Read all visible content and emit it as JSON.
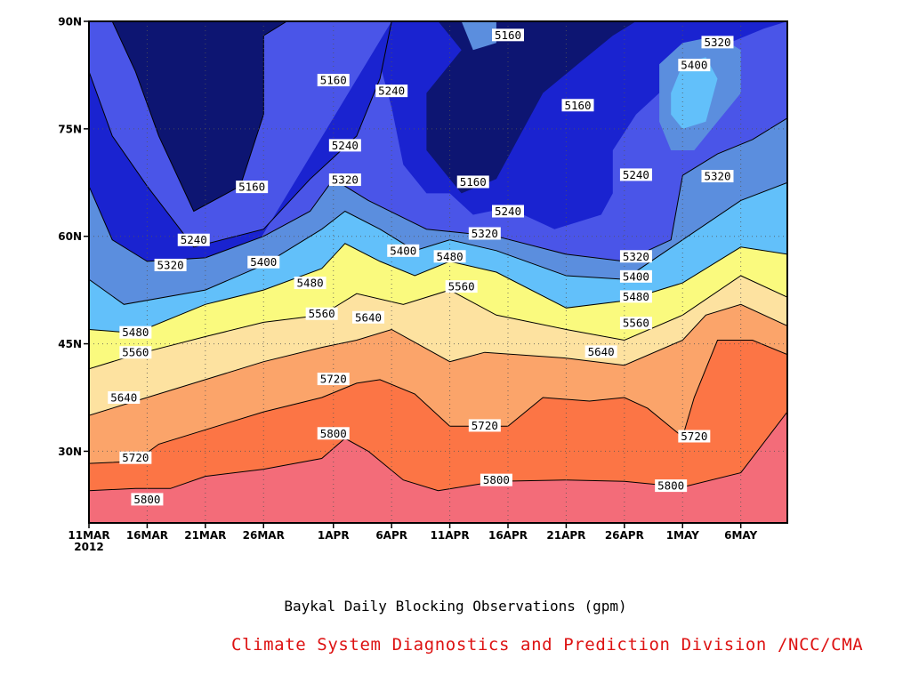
{
  "chart_data": {
    "type": "contour",
    "title": "Baykal Daily Blocking Observations (gpm)",
    "credit": "Climate System Diagnostics and Prediction Division /NCC/CMA",
    "x_tick_labels": [
      "11MAR",
      "16MAR",
      "21MAR",
      "26MAR",
      "1APR",
      "6APR",
      "11APR",
      "16APR",
      "21APR",
      "26APR",
      "1MAY",
      "6MAY"
    ],
    "x_year_label": "2012",
    "x_range": [
      "2012-03-11",
      "2012-05-10"
    ],
    "y_tick_labels": [
      "30N",
      "45N",
      "60N",
      "75N",
      "90N"
    ],
    "y_range_deg": [
      20,
      90
    ],
    "grid": true,
    "contour_levels": [
      5160,
      5240,
      5320,
      5400,
      5480,
      5560,
      5640,
      5720,
      5800
    ],
    "band_colors": [
      "#0d1572",
      "#1a23d0",
      "#4a55e8",
      "#5b8ede",
      "#62c0fa",
      "#fafa7e",
      "#fde2a0",
      "#fba46a",
      "#fc7545",
      "#f36c79"
    ],
    "contour_lines": [
      {
        "level": 5800,
        "points": [
          [
            "2012-03-11",
            24.5
          ],
          [
            "2012-03-15",
            24.8
          ],
          [
            "2012-03-18",
            24.8
          ],
          [
            "2012-03-21",
            26.5
          ],
          [
            "2012-03-26",
            27.5
          ],
          [
            "2012-03-31",
            29.0
          ],
          [
            "2012-04-02",
            31.8
          ],
          [
            "2012-04-04",
            30.0
          ],
          [
            "2012-04-07",
            26.0
          ],
          [
            "2012-04-10",
            24.5
          ],
          [
            "2012-04-15",
            25.8
          ],
          [
            "2012-04-21",
            26.0
          ],
          [
            "2012-04-26",
            25.8
          ],
          [
            "2012-05-01",
            25.0
          ],
          [
            "2012-05-06",
            27.0
          ],
          [
            "2012-05-10",
            35.5
          ]
        ]
      },
      {
        "level": 5720,
        "points": [
          [
            "2012-03-11",
            28.3
          ],
          [
            "2012-03-15",
            28.6
          ],
          [
            "2012-03-17",
            31.0
          ],
          [
            "2012-03-21",
            33.0
          ],
          [
            "2012-03-26",
            35.5
          ],
          [
            "2012-03-31",
            37.5
          ],
          [
            "2012-04-03",
            39.5
          ],
          [
            "2012-04-05",
            40.0
          ],
          [
            "2012-04-08",
            38.0
          ],
          [
            "2012-04-11",
            33.5
          ],
          [
            "2012-04-16",
            33.5
          ],
          [
            "2012-04-19",
            37.5
          ],
          [
            "2012-04-23",
            37.0
          ],
          [
            "2012-04-26",
            37.5
          ],
          [
            "2012-04-28",
            36.0
          ],
          [
            "2012-05-01",
            32.0
          ],
          [
            "2012-05-02",
            37.5
          ],
          [
            "2012-05-04",
            45.5
          ],
          [
            "2012-05-07",
            45.5
          ],
          [
            "2012-05-10",
            43.5
          ]
        ]
      },
      {
        "level": 5640,
        "points": [
          [
            "2012-03-11",
            35.0
          ],
          [
            "2012-03-15",
            37.0
          ],
          [
            "2012-03-21",
            40.0
          ],
          [
            "2012-03-26",
            42.5
          ],
          [
            "2012-03-31",
            44.5
          ],
          [
            "2012-04-03",
            45.5
          ],
          [
            "2012-04-06",
            47.0
          ],
          [
            "2012-04-11",
            42.5
          ],
          [
            "2012-04-14",
            43.8
          ],
          [
            "2012-04-21",
            43.0
          ],
          [
            "2012-04-26",
            42.0
          ],
          [
            "2012-05-01",
            45.5
          ],
          [
            "2012-05-03",
            49.0
          ],
          [
            "2012-05-06",
            50.5
          ],
          [
            "2012-05-10",
            47.5
          ]
        ]
      },
      {
        "level": 5560,
        "points": [
          [
            "2012-03-11",
            41.5
          ],
          [
            "2012-03-15",
            43.5
          ],
          [
            "2012-03-21",
            46.0
          ],
          [
            "2012-03-26",
            48.0
          ],
          [
            "2012-03-31",
            49.0
          ],
          [
            "2012-04-03",
            52.0
          ],
          [
            "2012-04-07",
            50.5
          ],
          [
            "2012-04-11",
            52.5
          ],
          [
            "2012-04-15",
            49.0
          ],
          [
            "2012-04-21",
            47.0
          ],
          [
            "2012-04-26",
            45.5
          ],
          [
            "2012-05-01",
            49.0
          ],
          [
            "2012-05-06",
            54.5
          ],
          [
            "2012-05-10",
            51.5
          ]
        ]
      },
      {
        "level": 5480,
        "points": [
          [
            "2012-03-11",
            47.0
          ],
          [
            "2012-03-15",
            46.5
          ],
          [
            "2012-03-21",
            50.5
          ],
          [
            "2012-03-26",
            52.5
          ],
          [
            "2012-03-31",
            55.5
          ],
          [
            "2012-04-02",
            59.0
          ],
          [
            "2012-04-05",
            56.5
          ],
          [
            "2012-04-08",
            54.5
          ],
          [
            "2012-04-11",
            56.5
          ],
          [
            "2012-04-15",
            55.0
          ],
          [
            "2012-04-21",
            50.0
          ],
          [
            "2012-04-26",
            51.0
          ],
          [
            "2012-05-01",
            53.5
          ],
          [
            "2012-05-06",
            58.5
          ],
          [
            "2012-05-10",
            57.5
          ]
        ]
      },
      {
        "level": 5400,
        "points": [
          [
            "2012-03-11",
            54.0
          ],
          [
            "2012-03-14",
            50.5
          ],
          [
            "2012-03-21",
            52.5
          ],
          [
            "2012-03-26",
            56.0
          ],
          [
            "2012-03-31",
            61.0
          ],
          [
            "2012-04-02",
            63.5
          ],
          [
            "2012-04-05",
            61.0
          ],
          [
            "2012-04-08",
            58.0
          ],
          [
            "2012-04-11",
            59.5
          ],
          [
            "2012-04-15",
            58.0
          ],
          [
            "2012-04-21",
            54.5
          ],
          [
            "2012-04-26",
            54.0
          ],
          [
            "2012-05-01",
            59.5
          ],
          [
            "2012-05-06",
            65.0
          ],
          [
            "2012-05-10",
            67.5
          ]
        ]
      },
      {
        "level": 5320,
        "points": [
          [
            "2012-03-11",
            67.0
          ],
          [
            "2012-03-13",
            59.5
          ],
          [
            "2012-03-16",
            56.5
          ],
          [
            "2012-03-21",
            57.0
          ],
          [
            "2012-03-26",
            60.0
          ],
          [
            "2012-03-30",
            63.5
          ],
          [
            "2012-04-01",
            68.0
          ],
          [
            "2012-04-04",
            65.0
          ],
          [
            "2012-04-09",
            61.0
          ],
          [
            "2012-04-15",
            60.0
          ],
          [
            "2012-04-21",
            57.5
          ],
          [
            "2012-04-26",
            56.5
          ],
          [
            "2012-04-30",
            59.5
          ],
          [
            "2012-05-01",
            68.5
          ],
          [
            "2012-05-04",
            71.5
          ],
          [
            "2012-05-07",
            73.5
          ],
          [
            "2012-05-10",
            76.5
          ]
        ]
      },
      {
        "level": 5240,
        "points": [
          [
            "2012-03-11",
            83.0
          ],
          [
            "2012-03-13",
            74.0
          ],
          [
            "2012-03-16",
            67.0
          ],
          [
            "2012-03-20",
            58.5
          ],
          [
            "2012-03-26",
            61.0
          ],
          [
            "2012-03-30",
            68.0
          ],
          [
            "2012-04-01",
            71.0
          ],
          [
            "2012-04-03",
            74.0
          ],
          [
            "2012-04-05",
            82.0
          ],
          [
            "2012-04-06",
            90.0
          ]
        ]
      },
      {
        "level": 5160,
        "points": [
          [
            "2012-03-13",
            90.0
          ],
          [
            "2012-03-15",
            83.0
          ],
          [
            "2012-03-17",
            74.0
          ],
          [
            "2012-03-20",
            63.5
          ],
          [
            "2012-03-24",
            67.0
          ],
          [
            "2012-03-26",
            77.0
          ],
          [
            "2012-03-26",
            88.0
          ],
          [
            "2012-03-28",
            90.0
          ]
        ]
      }
    ],
    "contour_labels": [
      {
        "text": "5160",
        "x": "2012-04-01",
        "y": 81.8
      },
      {
        "text": "5240",
        "x": "2012-04-06",
        "y": 80.3
      },
      {
        "text": "5160",
        "x": "2012-04-16",
        "y": 88.1
      },
      {
        "text": "5320",
        "x": "2012-05-04",
        "y": 87.1
      },
      {
        "text": "5400",
        "x": "2012-05-02",
        "y": 83.9
      },
      {
        "text": "5160",
        "x": "2012-04-22",
        "y": 78.3
      },
      {
        "text": "5240",
        "x": "2012-04-02",
        "y": 72.7
      },
      {
        "text": "5320",
        "x": "2012-04-02",
        "y": 67.9
      },
      {
        "text": "5160",
        "x": "2012-03-25",
        "y": 66.9
      },
      {
        "text": "5160",
        "x": "2012-04-13",
        "y": 67.6
      },
      {
        "text": "5240",
        "x": "2012-04-27",
        "y": 68.6
      },
      {
        "text": "5320",
        "x": "2012-05-04",
        "y": 68.4
      },
      {
        "text": "5240",
        "x": "2012-04-16",
        "y": 63.5
      },
      {
        "text": "5240",
        "x": "2012-03-20",
        "y": 59.5
      },
      {
        "text": "5320",
        "x": "2012-04-14",
        "y": 60.4
      },
      {
        "text": "5320",
        "x": "2012-03-18",
        "y": 56.0
      },
      {
        "text": "5400",
        "x": "2012-03-26",
        "y": 56.4
      },
      {
        "text": "5400",
        "x": "2012-04-07",
        "y": 58.0
      },
      {
        "text": "5480",
        "x": "2012-04-11",
        "y": 57.2
      },
      {
        "text": "5320",
        "x": "2012-04-27",
        "y": 57.2
      },
      {
        "text": "5400",
        "x": "2012-04-27",
        "y": 54.4
      },
      {
        "text": "5480",
        "x": "2012-03-30",
        "y": 53.5
      },
      {
        "text": "5560",
        "x": "2012-04-12",
        "y": 53.0
      },
      {
        "text": "5480",
        "x": "2012-04-27",
        "y": 51.6
      },
      {
        "text": "5560",
        "x": "2012-03-31",
        "y": 49.2
      },
      {
        "text": "5640",
        "x": "2012-04-04",
        "y": 48.7
      },
      {
        "text": "5560",
        "x": "2012-04-27",
        "y": 47.9
      },
      {
        "text": "5480",
        "x": "2012-03-15",
        "y": 46.6
      },
      {
        "text": "5560",
        "x": "2012-03-15",
        "y": 43.8
      },
      {
        "text": "5640",
        "x": "2012-04-24",
        "y": 43.9
      },
      {
        "text": "5720",
        "x": "2012-04-01",
        "y": 40.1
      },
      {
        "text": "5640",
        "x": "2012-03-14",
        "y": 37.5
      },
      {
        "text": "5720",
        "x": "2012-04-14",
        "y": 33.6
      },
      {
        "text": "5720",
        "x": "2012-05-02",
        "y": 32.1
      },
      {
        "text": "5800",
        "x": "2012-04-01",
        "y": 32.5
      },
      {
        "text": "5720",
        "x": "2012-03-15",
        "y": 29.1
      },
      {
        "text": "5800",
        "x": "2012-04-15",
        "y": 26.0
      },
      {
        "text": "5800",
        "x": "2012-04-30",
        "y": 25.2
      },
      {
        "text": "5800",
        "x": "2012-03-16",
        "y": 23.3
      }
    ],
    "light_patches": [
      {
        "level": 5400,
        "fill": "#62c0fa",
        "center": [
          "2012-05-02",
          81.5
        ]
      },
      {
        "level": 5320,
        "fill": "#5b8ede",
        "center": [
          "2012-04-13",
          88.0
        ]
      }
    ]
  }
}
